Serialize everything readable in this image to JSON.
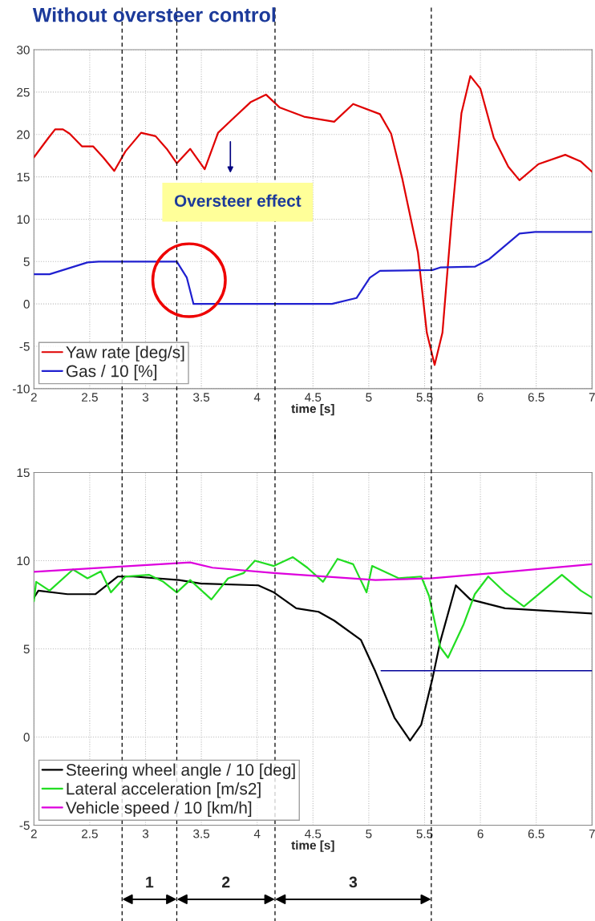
{
  "chart_data": [
    {
      "type": "line",
      "title": "Without oversteer control",
      "xlabel": "time [s]",
      "xlim": [
        2,
        7
      ],
      "ylim": [
        -10,
        30
      ],
      "xticks": [
        2,
        2.5,
        3,
        3.5,
        4,
        4.5,
        5,
        5.5,
        6,
        6.5,
        7
      ],
      "yticks": [
        -10,
        -5,
        0,
        5,
        10,
        15,
        20,
        25,
        30
      ],
      "grid": true,
      "legend": "bottom left",
      "series": [
        {
          "name": "Yaw rate [deg/s]",
          "color": "#e00000",
          "x": [
            2.0,
            2.13,
            2.19,
            2.26,
            2.32,
            2.43,
            2.53,
            2.62,
            2.72,
            2.82,
            2.96,
            3.09,
            3.19,
            3.28,
            3.4,
            3.53,
            3.65,
            3.77,
            3.94,
            4.08,
            4.2,
            4.42,
            4.69,
            4.86,
            5.1,
            5.2,
            5.3,
            5.44,
            5.52,
            5.59,
            5.66,
            5.74,
            5.83,
            5.91,
            6.0,
            6.12,
            6.25,
            6.35,
            6.52,
            6.76,
            6.9,
            7.0
          ],
          "values": [
            17.3,
            19.6,
            20.6,
            20.6,
            20.1,
            18.6,
            18.6,
            17.3,
            15.7,
            18.0,
            20.2,
            19.8,
            18.3,
            16.6,
            18.3,
            15.9,
            20.2,
            21.7,
            23.8,
            24.7,
            23.2,
            22.1,
            21.5,
            23.6,
            22.4,
            20.1,
            14.8,
            6.1,
            -3.4,
            -7.2,
            -3.4,
            9.6,
            22.5,
            26.9,
            25.4,
            19.6,
            16.2,
            14.6,
            16.5,
            17.6,
            16.8,
            15.6
          ]
        },
        {
          "name": "Gas / 10 [%]",
          "color": "#2020d0",
          "x": [
            2.0,
            2.14,
            2.48,
            2.58,
            3.28,
            3.37,
            3.43,
            4.67,
            4.89,
            5.01,
            5.1,
            5.57,
            5.64,
            5.95,
            6.08,
            6.35,
            6.49,
            7.0
          ],
          "values": [
            3.5,
            3.5,
            4.9,
            5.0,
            5.0,
            3.1,
            0,
            0,
            0.7,
            3.1,
            3.9,
            4.0,
            4.3,
            4.4,
            5.3,
            8.3,
            8.5,
            8.5
          ]
        }
      ],
      "ref_lines": [
        {
          "axis": "x",
          "value": 2.79,
          "color": "#000000",
          "line_style": "dashed"
        },
        {
          "axis": "x",
          "value": 3.28,
          "color": "#000000",
          "line_style": "dashed"
        },
        {
          "axis": "x",
          "value": 4.16,
          "color": "#000000",
          "line_style": "dashed"
        },
        {
          "axis": "x",
          "value": 5.56,
          "color": "#000000",
          "line_style": "dashed"
        }
      ],
      "annotations": [
        "Oversteer effect"
      ]
    },
    {
      "type": "line",
      "xlabel": "time [s]",
      "xlim": [
        2,
        7
      ],
      "ylim": [
        -5,
        15
      ],
      "xticks": [
        2,
        2.5,
        3,
        3.5,
        4,
        4.5,
        5,
        5.5,
        6,
        6.5,
        7
      ],
      "yticks": [
        -5,
        0,
        5,
        10,
        15
      ],
      "grid": true,
      "legend": "bottom left",
      "series": [
        {
          "name": "Steering wheel angle / 10 [deg]",
          "color": "#000000",
          "x": [
            2.0,
            2.04,
            2.3,
            2.55,
            2.75,
            2.89,
            3.3,
            3.5,
            4.01,
            4.15,
            4.35,
            4.55,
            4.69,
            4.93,
            5.06,
            5.23,
            5.37,
            5.47,
            5.57,
            5.64,
            5.78,
            5.91,
            6.22,
            7.0
          ],
          "values": [
            7.9,
            8.3,
            8.1,
            8.1,
            9.1,
            9.1,
            8.9,
            8.7,
            8.6,
            8.2,
            7.3,
            7.1,
            6.6,
            5.5,
            3.7,
            1.1,
            -0.2,
            0.7,
            3.3,
            5.4,
            8.6,
            7.8,
            7.3,
            7.0
          ]
        },
        {
          "name": "Lateral acceleration [m/s2]",
          "color": "#22dd22",
          "x": [
            2.0,
            2.02,
            2.14,
            2.35,
            2.48,
            2.6,
            2.69,
            2.82,
            3.03,
            3.16,
            3.28,
            3.4,
            3.59,
            3.74,
            3.88,
            3.98,
            4.15,
            4.32,
            4.45,
            4.59,
            4.72,
            4.86,
            4.98,
            5.03,
            5.27,
            5.47,
            5.54,
            5.64,
            5.71,
            5.85,
            5.95,
            6.07,
            6.22,
            6.39,
            6.56,
            6.73,
            6.9,
            7.0
          ],
          "values": [
            7.7,
            8.8,
            8.3,
            9.5,
            9.0,
            9.4,
            8.2,
            9.1,
            9.2,
            8.8,
            8.2,
            8.9,
            7.8,
            9.0,
            9.3,
            10.0,
            9.7,
            10.2,
            9.6,
            8.8,
            10.1,
            9.8,
            8.2,
            9.7,
            9.0,
            9.1,
            8.0,
            5.1,
            4.5,
            6.4,
            8.1,
            9.1,
            8.2,
            7.4,
            8.3,
            9.2,
            8.3,
            7.9
          ]
        },
        {
          "name": "Vehicle speed / 10 [km/h]",
          "color": "#dd00dd",
          "x": [
            2.0,
            3.4,
            3.6,
            4.15,
            5.06,
            5.57,
            6.12,
            7.0
          ],
          "values": [
            9.37,
            9.9,
            9.6,
            9.3,
            8.9,
            9.0,
            9.3,
            9.8
          ]
        },
        {
          "color": "#000099",
          "x": [
            5.11,
            7.0
          ],
          "values": [
            3.76,
            3.76
          ]
        }
      ],
      "ref_lines": [
        {
          "axis": "x",
          "value": 2.79,
          "color": "#000000",
          "line_style": "dashed"
        },
        {
          "axis": "x",
          "value": 3.28,
          "color": "#000000",
          "line_style": "dashed"
        },
        {
          "axis": "x",
          "value": 4.16,
          "color": "#000000",
          "line_style": "dashed"
        },
        {
          "axis": "x",
          "value": 5.56,
          "color": "#000000",
          "line_style": "dashed"
        }
      ],
      "annotations": [
        "1",
        "2",
        "3"
      ]
    }
  ]
}
